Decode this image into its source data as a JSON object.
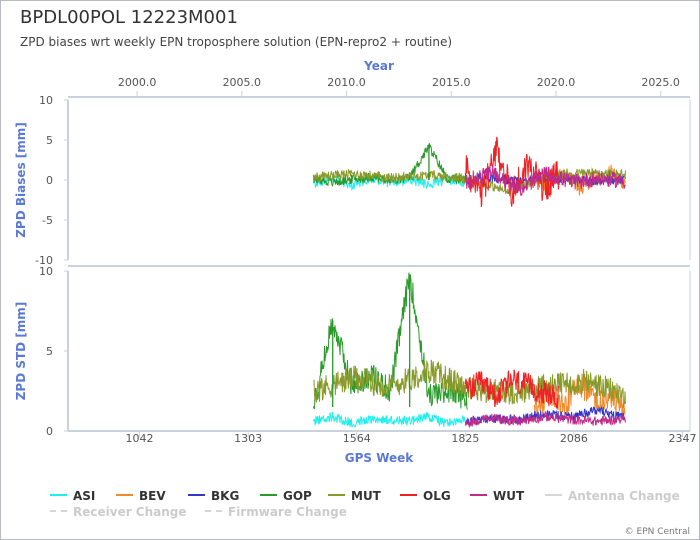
{
  "header": {
    "title": "BPDL00POL 12223M001",
    "subtitle": "ZPD biases wrt weekly EPN troposphere solution (EPN-repro2 + routine)"
  },
  "copyright": "© EPN Central",
  "chart_data": {
    "type": "line",
    "top_axis": {
      "label": "Year",
      "ticks": [
        "2000.0",
        "2005.0",
        "2010.0",
        "2015.0",
        "2020.0",
        "2025.0"
      ],
      "range": [
        1996.7,
        2026.4
      ]
    },
    "x_axis": {
      "label": "GPS Week",
      "ticks": [
        "1042",
        "1303",
        "1564",
        "1825",
        "2086",
        "2347"
      ],
      "range": [
        870,
        2365
      ]
    },
    "panels": [
      {
        "ylabel": "ZPD Biases [mm]",
        "ylim": [
          -10,
          10
        ],
        "yticks": [
          "10",
          "5",
          "0",
          "-5",
          "-10"
        ],
        "grid": false
      },
      {
        "ylabel": "ZPD STD [mm]",
        "ylim": [
          0,
          10
        ],
        "yticks": [
          "10",
          "5",
          "0"
        ],
        "grid": false
      }
    ],
    "series": [
      {
        "name": "ASI",
        "color": "#22eeee",
        "weeks": [
          1460,
          1825
        ],
        "bias": [
          -0.5,
          0.3,
          -0.8,
          0.2,
          -0.4,
          0.1,
          -0.6,
          0.0,
          -0.3
        ],
        "std": [
          0.6,
          0.9,
          0.5,
          0.8,
          0.7,
          0.6,
          0.9,
          0.5,
          0.7
        ]
      },
      {
        "name": "BEV",
        "color": "#f08a2a",
        "weeks": [
          1990,
          2210
        ],
        "bias": [
          0.5,
          -0.8,
          1.2,
          -1.0,
          0.3,
          1.0,
          -0.5
        ],
        "std": [
          1.2,
          2.5,
          1.5,
          3.0,
          1.8,
          2.2,
          1.4
        ]
      },
      {
        "name": "BKG",
        "color": "#3535c8",
        "weeks": [
          1825,
          2210
        ],
        "bias": [
          0.0,
          0.3,
          -0.2,
          0.4,
          0.1,
          -0.1,
          0.2
        ],
        "std": [
          0.6,
          0.8,
          0.7,
          1.1,
          0.9,
          1.3,
          0.8
        ]
      },
      {
        "name": "GOP",
        "color": "#2a9a2a",
        "weeks": [
          1460,
          1830
        ],
        "bias": [
          0.2,
          -0.3,
          0.1,
          0.4,
          -0.2,
          0.3,
          4.2,
          0.0,
          0.1
        ],
        "std": [
          1.5,
          6.9,
          2.8,
          3.5,
          2.5,
          9.8,
          2.2,
          2.6,
          2.0
        ]
      },
      {
        "name": "MUT",
        "color": "#8a9a2a",
        "weeks": [
          1460,
          2210
        ],
        "bias": [
          0.4,
          0.8,
          0.3,
          0.6,
          0.2,
          -1.5,
          0.5,
          0.9,
          0.7
        ],
        "std": [
          2.5,
          3.3,
          2.8,
          3.8,
          2.6,
          2.4,
          2.8,
          3.1,
          2.2
        ]
      },
      {
        "name": "OLG",
        "color": "#ee2222",
        "weeks": [
          1825,
          2050
        ],
        "bias": [
          1.5,
          -2.0,
          3.5,
          -1.5,
          2.0,
          -1.0,
          0.8
        ],
        "std": [
          2.5,
          3.0,
          2.2,
          3.2,
          2.8,
          2.4,
          2.0
        ]
      },
      {
        "name": "WUT",
        "color": "#c02a8a",
        "weeks": [
          1825,
          2210
        ],
        "bias": [
          -0.5,
          1.0,
          -1.2,
          0.8,
          -0.3,
          0.2,
          -0.1
        ],
        "std": [
          0.5,
          0.8,
          0.6,
          0.9,
          0.7,
          0.6,
          0.8
        ]
      }
    ],
    "legend": {
      "placement": "bottom",
      "items": [
        {
          "label": "ASI",
          "color": "#22eeee",
          "style": "solid",
          "dim": false
        },
        {
          "label": "BEV",
          "color": "#f08a2a",
          "style": "solid",
          "dim": false
        },
        {
          "label": "BKG",
          "color": "#3535c8",
          "style": "solid",
          "dim": false
        },
        {
          "label": "GOP",
          "color": "#2a9a2a",
          "style": "solid",
          "dim": false
        },
        {
          "label": "MUT",
          "color": "#8a9a2a",
          "style": "solid",
          "dim": false
        },
        {
          "label": "OLG",
          "color": "#ee2222",
          "style": "solid",
          "dim": false
        },
        {
          "label": "WUT",
          "color": "#c02a8a",
          "style": "solid",
          "dim": false
        },
        {
          "label": "Antenna Change",
          "color": "#d6d6d6",
          "style": "solid",
          "dim": true
        },
        {
          "label": "Receiver Change",
          "color": "#d6d6d6",
          "style": "dashed",
          "dim": true
        },
        {
          "label": "Firmware Change",
          "color": "#d6d6d6",
          "style": "dashed",
          "dim": true
        }
      ]
    },
    "axis_color": "#5a78d8"
  }
}
